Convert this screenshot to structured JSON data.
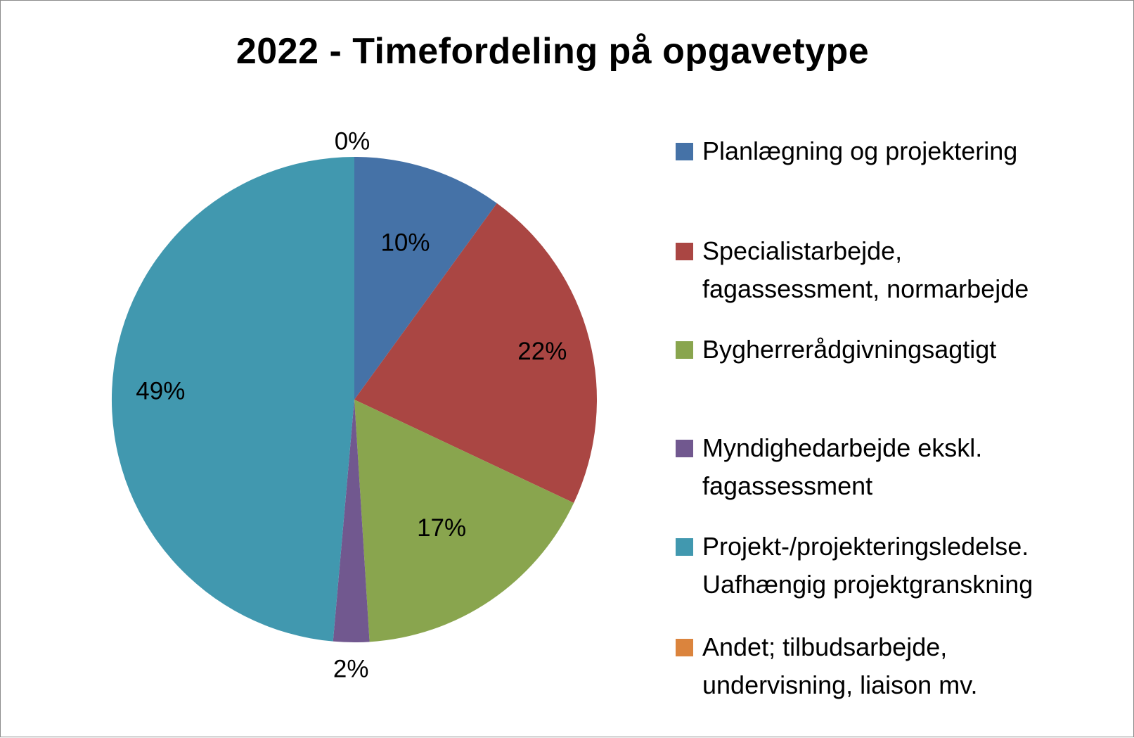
{
  "chart_data": {
    "type": "pie",
    "title": "2022 - Timefordeling på opgavetype",
    "slices": [
      {
        "label": [
          "Planlægning og projektering"
        ],
        "value": 10,
        "value_label": "10%",
        "color": "#4572A7"
      },
      {
        "label": [
          "Specialistarbejde,",
          "fagassessment, normarbejde"
        ],
        "value": 22,
        "value_label": "22%",
        "color": "#AA4643"
      },
      {
        "label": [
          "Bygherrerådgivningsagtigt"
        ],
        "value": 17,
        "value_label": "17%",
        "color": "#89A54E"
      },
      {
        "label": [
          "Myndighedarbejde ekskl.",
          "fagassessment"
        ],
        "value": 2.4,
        "value_label": "2%",
        "color": "#71588F"
      },
      {
        "label": [
          "Projekt-/projekteringsledelse.",
          "Uafhængig projektgranskning"
        ],
        "value": 48.6,
        "value_label": "49%",
        "color": "#4198AF"
      },
      {
        "label": [
          "Andet; tilbudsarbejde,",
          "undervisning, liaison mv."
        ],
        "value": 0,
        "value_label": "0%",
        "color": "#DB843D"
      }
    ],
    "start_angle": "12 o'clock",
    "direction": "clockwise",
    "legend_position": "right"
  }
}
